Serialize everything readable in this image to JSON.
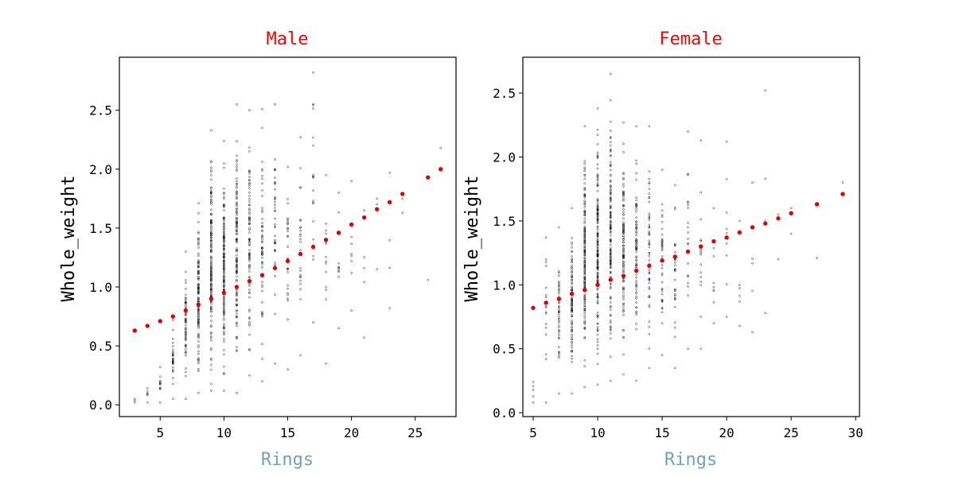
{
  "colors": {
    "title": "#ff0000",
    "xlabel": "#6fa3b8",
    "scatter_edge": "#000000",
    "trend_point": "#e00000"
  },
  "chart_data": [
    {
      "type": "scatter",
      "title": "Male",
      "xlabel": "Rings",
      "ylabel": "Whole_weight",
      "xlim": [
        1.8,
        28.2
      ],
      "ylim": [
        -0.1,
        2.95
      ],
      "xticks": [
        5,
        10,
        15,
        20,
        25
      ],
      "yticks": [
        0.0,
        0.5,
        1.0,
        1.5,
        2.0,
        2.5
      ],
      "ytick_labels": [
        "0.0",
        "0.5",
        "1.0",
        "1.5",
        "2.0",
        "2.5"
      ],
      "grid": false,
      "raw_ranges": [
        {
          "x": 3,
          "min": 0.02,
          "max": 0.05,
          "n": 3
        },
        {
          "x": 4,
          "min": 0.02,
          "max": 0.14,
          "n": 6
        },
        {
          "x": 5,
          "min": 0.02,
          "max": 0.32,
          "n": 12
        },
        {
          "x": 6,
          "min": 0.05,
          "max": 0.72,
          "n": 30
        },
        {
          "x": 7,
          "min": 0.05,
          "max": 1.3,
          "n": 60
        },
        {
          "x": 8,
          "min": 0.1,
          "max": 1.71,
          "n": 110
        },
        {
          "x": 9,
          "min": 0.12,
          "max": 2.33,
          "n": 160
        },
        {
          "x": 10,
          "min": 0.12,
          "max": 2.24,
          "n": 150
        },
        {
          "x": 11,
          "min": 0.1,
          "max": 2.55,
          "n": 120
        },
        {
          "x": 12,
          "min": 0.25,
          "max": 2.5,
          "n": 80
        },
        {
          "x": 13,
          "min": 0.2,
          "max": 2.51,
          "n": 55
        },
        {
          "x": 14,
          "min": 0.35,
          "max": 2.55,
          "n": 40
        },
        {
          "x": 15,
          "min": 0.3,
          "max": 2.02,
          "n": 30
        },
        {
          "x": 16,
          "min": 0.42,
          "max": 2.27,
          "n": 25
        },
        {
          "x": 17,
          "min": 0.7,
          "max": 2.82,
          "n": 20
        },
        {
          "x": 18,
          "min": 0.35,
          "max": 1.95,
          "n": 14
        },
        {
          "x": 19,
          "min": 0.65,
          "max": 1.8,
          "n": 10
        },
        {
          "x": 20,
          "min": 0.8,
          "max": 1.9,
          "n": 8
        },
        {
          "x": 21,
          "min": 0.57,
          "max": 1.65,
          "n": 5
        },
        {
          "x": 22,
          "min": 1.15,
          "max": 1.75,
          "n": 3
        },
        {
          "x": 23,
          "min": 0.82,
          "max": 1.97,
          "n": 4
        },
        {
          "x": 24,
          "min": 1.63,
          "max": 1.75,
          "n": 2
        },
        {
          "x": 26,
          "min": 1.06,
          "max": 1.06,
          "n": 1
        },
        {
          "x": 27,
          "min": 2.18,
          "max": 2.18,
          "n": 1
        }
      ],
      "trend": {
        "x": [
          3,
          4,
          5,
          6,
          7,
          8,
          9,
          10,
          11,
          12,
          13,
          14,
          15,
          16,
          17,
          18,
          19,
          20,
          21,
          22,
          23,
          24,
          26,
          27
        ],
        "y": [
          0.63,
          0.67,
          0.71,
          0.75,
          0.8,
          0.85,
          0.9,
          0.95,
          1.0,
          1.05,
          1.1,
          1.16,
          1.22,
          1.28,
          1.34,
          1.4,
          1.46,
          1.53,
          1.59,
          1.66,
          1.72,
          1.79,
          1.93,
          2.0
        ]
      }
    },
    {
      "type": "scatter",
      "title": "Female",
      "xlabel": "Rings",
      "ylabel": "Whole_weight",
      "xlim": [
        4.2,
        30.3
      ],
      "ylim": [
        -0.03,
        2.78
      ],
      "xticks": [
        5,
        10,
        15,
        20,
        25,
        30
      ],
      "yticks": [
        0.0,
        0.5,
        1.0,
        1.5,
        2.0,
        2.5
      ],
      "ytick_labels": [
        "0.0",
        "0.5",
        "1.0",
        "1.5",
        "2.0",
        "2.5"
      ],
      "grid": false,
      "raw_ranges": [
        {
          "x": 5,
          "min": 0.08,
          "max": 0.24,
          "n": 5
        },
        {
          "x": 6,
          "min": 0.08,
          "max": 1.37,
          "n": 18
        },
        {
          "x": 7,
          "min": 0.15,
          "max": 1.45,
          "n": 45
        },
        {
          "x": 8,
          "min": 0.15,
          "max": 1.6,
          "n": 90
        },
        {
          "x": 9,
          "min": 0.2,
          "max": 2.24,
          "n": 150
        },
        {
          "x": 10,
          "min": 0.22,
          "max": 2.38,
          "n": 160
        },
        {
          "x": 11,
          "min": 0.25,
          "max": 2.65,
          "n": 140
        },
        {
          "x": 12,
          "min": 0.3,
          "max": 2.27,
          "n": 110
        },
        {
          "x": 13,
          "min": 0.25,
          "max": 2.24,
          "n": 80
        },
        {
          "x": 14,
          "min": 0.35,
          "max": 2.24,
          "n": 55
        },
        {
          "x": 15,
          "min": 0.45,
          "max": 1.9,
          "n": 40
        },
        {
          "x": 16,
          "min": 0.35,
          "max": 1.78,
          "n": 30
        },
        {
          "x": 17,
          "min": 0.5,
          "max": 2.2,
          "n": 22
        },
        {
          "x": 18,
          "min": 0.5,
          "max": 2.13,
          "n": 16
        },
        {
          "x": 19,
          "min": 0.7,
          "max": 1.6,
          "n": 10
        },
        {
          "x": 20,
          "min": 0.75,
          "max": 2.12,
          "n": 9
        },
        {
          "x": 21,
          "min": 0.68,
          "max": 1.5,
          "n": 6
        },
        {
          "x": 22,
          "min": 0.63,
          "max": 1.8,
          "n": 5
        },
        {
          "x": 23,
          "min": 0.78,
          "max": 2.52,
          "n": 4
        },
        {
          "x": 24,
          "min": 1.2,
          "max": 1.55,
          "n": 2
        },
        {
          "x": 25,
          "min": 1.4,
          "max": 1.6,
          "n": 2
        },
        {
          "x": 27,
          "min": 1.21,
          "max": 1.21,
          "n": 1
        },
        {
          "x": 29,
          "min": 1.8,
          "max": 1.8,
          "n": 1
        }
      ],
      "trend": {
        "x": [
          5,
          6,
          7,
          8,
          9,
          10,
          11,
          12,
          13,
          14,
          15,
          16,
          17,
          18,
          19,
          20,
          21,
          22,
          23,
          24,
          25,
          27,
          29
        ],
        "y": [
          0.82,
          0.86,
          0.89,
          0.93,
          0.96,
          1.0,
          1.04,
          1.07,
          1.11,
          1.15,
          1.19,
          1.22,
          1.26,
          1.3,
          1.34,
          1.37,
          1.41,
          1.45,
          1.48,
          1.52,
          1.56,
          1.63,
          1.71
        ]
      }
    }
  ]
}
